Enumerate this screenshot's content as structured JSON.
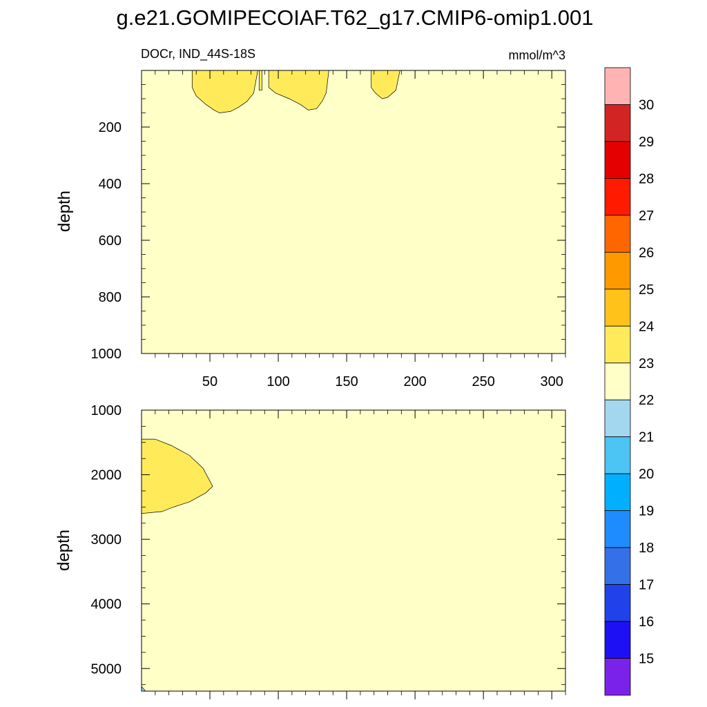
{
  "chart_data": {
    "type": "heatmap",
    "title": "g.e21.GOMIPECOIAF.T62_g17.CMIP6-omip1.001",
    "left_subtitle": "DOCr, IND_44S-18S",
    "right_subtitle": "mmol/m^3",
    "ylabel": "depth",
    "panels": [
      {
        "name": "upper",
        "ylim": [
          0,
          1000
        ],
        "xlim": [
          0,
          310
        ],
        "yticks": [
          "200",
          "400",
          "600",
          "800",
          "1000"
        ],
        "ytick_values": [
          200,
          400,
          600,
          800,
          1000
        ],
        "xticks": [
          "50",
          "100",
          "150",
          "200",
          "250",
          "300"
        ],
        "xtick_values": [
          50,
          100,
          150,
          200,
          250,
          300
        ],
        "background_level": "22-23",
        "regions": [
          {
            "level": "23-24",
            "points": [
              [
                37,
                0
              ],
              [
                37,
                60
              ],
              [
                40,
                90
              ],
              [
                47,
                120
              ],
              [
                53,
                140
              ],
              [
                57,
                150
              ],
              [
                65,
                145
              ],
              [
                71,
                130
              ],
              [
                77,
                110
              ],
              [
                82,
                80
              ],
              [
                85,
                0
              ]
            ]
          },
          {
            "level": "23-24",
            "points": [
              [
                86,
                0
              ],
              [
                86,
                70
              ],
              [
                88,
                70
              ],
              [
                88,
                0
              ]
            ]
          },
          {
            "level": "23-24",
            "points": [
              [
                93,
                0
              ],
              [
                93,
                60
              ],
              [
                98,
                80
              ],
              [
                108,
                100
              ],
              [
                116,
                120
              ],
              [
                122,
                140
              ],
              [
                128,
                135
              ],
              [
                132,
                110
              ],
              [
                135,
                80
              ],
              [
                137,
                0
              ]
            ]
          },
          {
            "level": "23-24",
            "points": [
              [
                168,
                0
              ],
              [
                168,
                60
              ],
              [
                171,
                80
              ],
              [
                176,
                100
              ],
              [
                180,
                95
              ],
              [
                186,
                70
              ],
              [
                189,
                0
              ]
            ]
          }
        ]
      },
      {
        "name": "lower",
        "ylim": [
          1000,
          5350
        ],
        "xlim": [
          0,
          310
        ],
        "yticks": [
          "1000",
          "2000",
          "3000",
          "4000",
          "5000"
        ],
        "ytick_values": [
          1000,
          2000,
          3000,
          4000,
          5000
        ],
        "xticks": [],
        "xtick_values": [
          50,
          100,
          150,
          200,
          250,
          300
        ],
        "background_level": "22-23",
        "regions": [
          {
            "level": "23-24",
            "points": [
              [
                0,
                1450
              ],
              [
                10,
                1450
              ],
              [
                22,
                1550
              ],
              [
                35,
                1700
              ],
              [
                45,
                1900
              ],
              [
                52,
                2180
              ],
              [
                47,
                2280
              ],
              [
                35,
                2420
              ],
              [
                22,
                2510
              ],
              [
                15,
                2570
              ],
              [
                0,
                2600
              ]
            ]
          },
          {
            "level": "21-22",
            "points": [
              [
                0,
                5280
              ],
              [
                3,
                5350
              ],
              [
                0,
                5350
              ]
            ]
          }
        ]
      }
    ],
    "colorbar": {
      "labels": [
        "30",
        "29",
        "28",
        "27",
        "26",
        "25",
        "24",
        "23",
        "22",
        "21",
        "20",
        "19",
        "18",
        "17",
        "16",
        "15"
      ],
      "colors_top_to_bottom": [
        "#FFB3B3",
        "#D32424",
        "#E50000",
        "#FF1A00",
        "#FF6600",
        "#FF9900",
        "#FFC21A",
        "#FFEB5A",
        "#FFFFC8",
        "#A3D7F0",
        "#4CC4F4",
        "#00B0FF",
        "#1E8CFF",
        "#3470E8",
        "#2142EA",
        "#1E10F5",
        "#7B22EA"
      ]
    },
    "level_colors": {
      "22-23": "#FFFFC8",
      "23-24": "#FFEB5A",
      "21-22": "#A3D7F0"
    },
    "grid": false
  }
}
